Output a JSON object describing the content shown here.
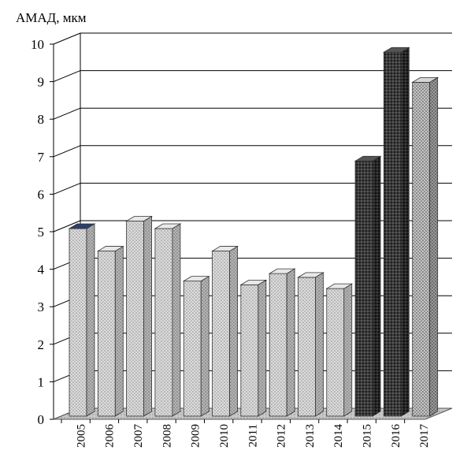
{
  "chart_data": {
    "type": "bar",
    "style": "3d-column",
    "ylabel": "АМАД, мкм",
    "xlabel": "",
    "title": "",
    "ylim": [
      0,
      10
    ],
    "yticks": [
      "0",
      "1",
      "2",
      "3",
      "4",
      "5",
      "6",
      "7",
      "8",
      "9",
      "10"
    ],
    "grid": true,
    "categories": [
      "2005",
      "2006",
      "2007",
      "2008",
      "2009",
      "2010",
      "2011",
      "2012",
      "2013",
      "2014",
      "2015",
      "2016",
      "2017"
    ],
    "values": [
      5.0,
      4.4,
      5.2,
      5.0,
      3.6,
      4.4,
      3.5,
      3.8,
      3.7,
      3.4,
      6.8,
      9.7,
      8.9
    ],
    "bar_patterns": [
      "light",
      "light",
      "light",
      "light",
      "light",
      "light",
      "light",
      "light",
      "light",
      "light",
      "dark",
      "dark",
      "medium"
    ],
    "colors": {
      "light_fill": "#dcdcdc",
      "light_dot": "#8a8a8a",
      "medium_fill": "#c8c8c8",
      "medium_dot": "#6a6a6a",
      "dark_fill": "#3a3a3a",
      "dark_dot": "#0d0d0d",
      "first_bar_top": "#2b3f6b",
      "floor": "#c0c0c0",
      "grid": "#000000"
    }
  }
}
